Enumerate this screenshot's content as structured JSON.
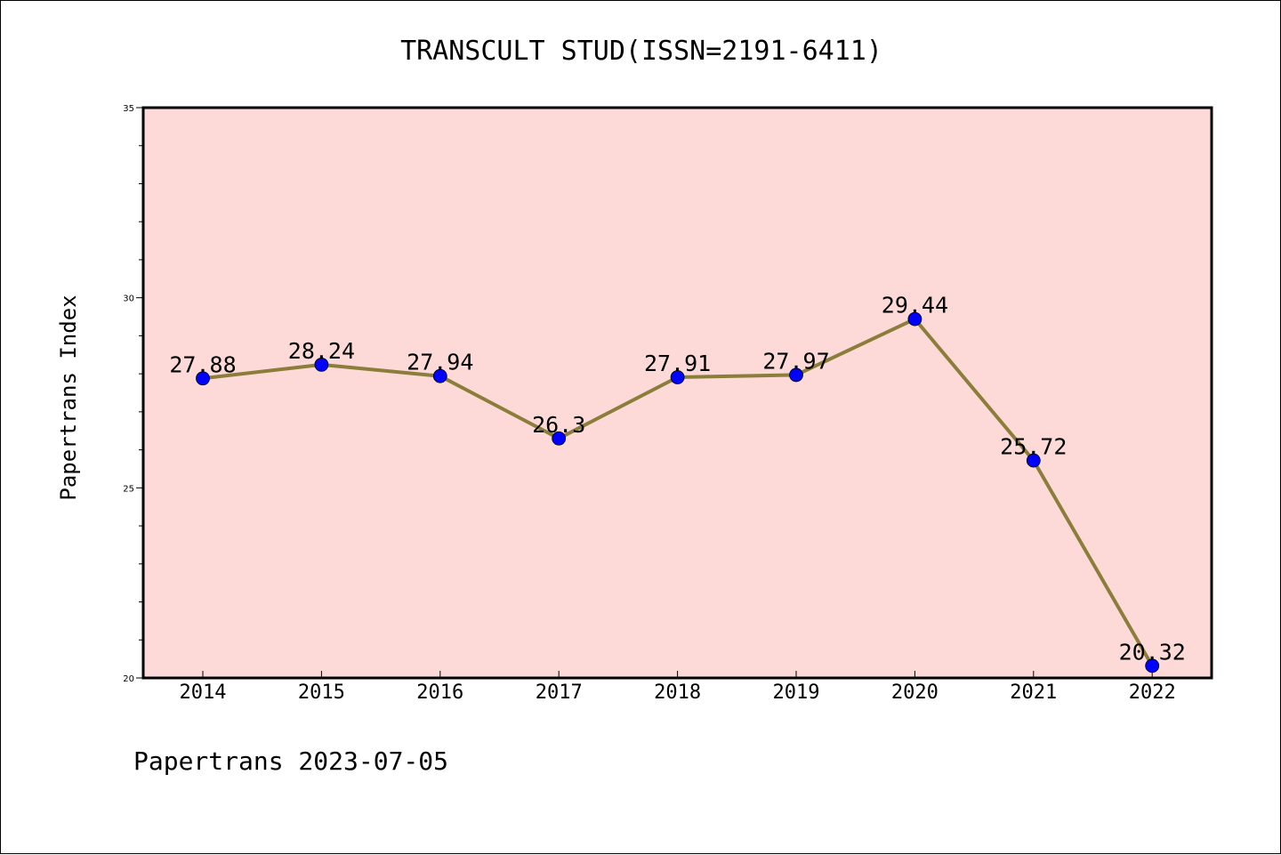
{
  "chart_data": {
    "type": "line",
    "title": "TRANSCULT STUD(ISSN=2191-6411)",
    "ylabel": "Papertrans Index",
    "xlabel": "",
    "footer": "Papertrans 2023-07-05",
    "categories": [
      "2014",
      "2015",
      "2016",
      "2017",
      "2018",
      "2019",
      "2020",
      "2021",
      "2022"
    ],
    "values": [
      27.88,
      28.24,
      27.94,
      26.3,
      27.91,
      27.97,
      29.44,
      25.72,
      20.32
    ],
    "data_labels": [
      "27.88",
      "28.24",
      "27.94",
      "26.3",
      "27.91",
      "27.97",
      "29.44",
      "25.72",
      "20.32"
    ],
    "ylim": [
      20,
      35
    ],
    "yticks": [
      "20",
      "25",
      "30",
      "35"
    ],
    "grid": false,
    "colors": {
      "plot_background": "#fddad7",
      "line": "#8b7d3a",
      "marker": "#0000ff"
    }
  }
}
